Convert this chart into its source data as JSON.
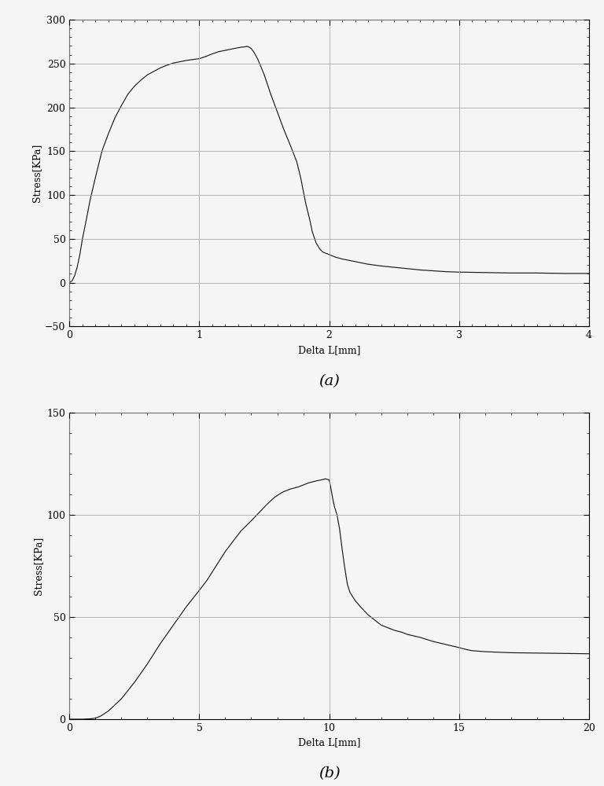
{
  "plot_a": {
    "title": "(a)",
    "xlabel": "Delta L[mm]",
    "ylabel": "Stress[KPa]",
    "xlim": [
      0,
      4
    ],
    "ylim": [
      -50,
      300
    ],
    "xticks": [
      0,
      1,
      2,
      3,
      4
    ],
    "yticks": [
      -50,
      0,
      50,
      100,
      150,
      200,
      250,
      300
    ],
    "x_minor_interval": 0.1,
    "y_minor_interval": 10,
    "curve": [
      [
        0.0,
        0.0
      ],
      [
        0.02,
        2.0
      ],
      [
        0.04,
        8.0
      ],
      [
        0.06,
        18.0
      ],
      [
        0.08,
        32.0
      ],
      [
        0.1,
        50.0
      ],
      [
        0.13,
        72.0
      ],
      [
        0.16,
        95.0
      ],
      [
        0.2,
        120.0
      ],
      [
        0.25,
        150.0
      ],
      [
        0.3,
        170.0
      ],
      [
        0.35,
        188.0
      ],
      [
        0.4,
        202.0
      ],
      [
        0.45,
        215.0
      ],
      [
        0.5,
        224.0
      ],
      [
        0.55,
        231.0
      ],
      [
        0.6,
        237.0
      ],
      [
        0.65,
        241.0
      ],
      [
        0.7,
        245.0
      ],
      [
        0.75,
        248.0
      ],
      [
        0.8,
        250.5
      ],
      [
        0.85,
        252.0
      ],
      [
        0.9,
        253.5
      ],
      [
        0.95,
        254.5
      ],
      [
        1.0,
        255.5
      ],
      [
        1.05,
        258.0
      ],
      [
        1.1,
        261.0
      ],
      [
        1.15,
        263.5
      ],
      [
        1.2,
        265.0
      ],
      [
        1.25,
        266.5
      ],
      [
        1.3,
        268.0
      ],
      [
        1.32,
        268.5
      ],
      [
        1.35,
        269.0
      ],
      [
        1.37,
        269.5
      ],
      [
        1.38,
        269.0
      ],
      [
        1.4,
        267.0
      ],
      [
        1.42,
        263.0
      ],
      [
        1.45,
        255.0
      ],
      [
        1.5,
        237.0
      ],
      [
        1.55,
        215.0
      ],
      [
        1.6,
        195.0
      ],
      [
        1.65,
        175.0
      ],
      [
        1.7,
        157.0
      ],
      [
        1.75,
        138.0
      ],
      [
        1.78,
        120.0
      ],
      [
        1.8,
        105.0
      ],
      [
        1.82,
        90.0
      ],
      [
        1.85,
        72.0
      ],
      [
        1.87,
        58.0
      ],
      [
        1.9,
        45.0
      ],
      [
        1.93,
        38.0
      ],
      [
        1.95,
        35.0
      ],
      [
        2.0,
        32.0
      ],
      [
        2.05,
        29.0
      ],
      [
        2.1,
        27.0
      ],
      [
        2.2,
        24.0
      ],
      [
        2.3,
        21.0
      ],
      [
        2.4,
        19.0
      ],
      [
        2.5,
        17.5
      ],
      [
        2.6,
        16.0
      ],
      [
        2.7,
        14.5
      ],
      [
        2.8,
        13.5
      ],
      [
        2.9,
        12.5
      ],
      [
        3.0,
        12.0
      ],
      [
        3.2,
        11.5
      ],
      [
        3.4,
        11.0
      ],
      [
        3.6,
        11.0
      ],
      [
        3.8,
        10.5
      ],
      [
        4.0,
        10.5
      ]
    ]
  },
  "plot_b": {
    "title": "(b)",
    "xlabel": "Delta L[mm]",
    "ylabel": "Stress[KPa]",
    "xlim": [
      0,
      20
    ],
    "ylim": [
      0,
      150
    ],
    "xticks": [
      0,
      5,
      10,
      15,
      20
    ],
    "yticks": [
      0,
      50,
      100,
      150
    ],
    "x_minor_interval": 1,
    "y_minor_interval": 10,
    "curve": [
      [
        0.0,
        0.0
      ],
      [
        0.5,
        0.0
      ],
      [
        0.8,
        0.2
      ],
      [
        1.0,
        0.5
      ],
      [
        1.2,
        1.5
      ],
      [
        1.5,
        4.0
      ],
      [
        2.0,
        10.0
      ],
      [
        2.5,
        18.0
      ],
      [
        3.0,
        27.0
      ],
      [
        3.5,
        37.0
      ],
      [
        4.0,
        46.0
      ],
      [
        4.5,
        55.0
      ],
      [
        5.0,
        63.0
      ],
      [
        5.3,
        68.0
      ],
      [
        5.5,
        72.0
      ],
      [
        5.8,
        78.0
      ],
      [
        6.0,
        82.0
      ],
      [
        6.3,
        87.0
      ],
      [
        6.6,
        92.0
      ],
      [
        7.0,
        97.0
      ],
      [
        7.3,
        101.0
      ],
      [
        7.6,
        105.0
      ],
      [
        7.9,
        108.5
      ],
      [
        8.2,
        111.0
      ],
      [
        8.5,
        112.5
      ],
      [
        8.8,
        113.5
      ],
      [
        9.0,
        114.5
      ],
      [
        9.2,
        115.5
      ],
      [
        9.5,
        116.5
      ],
      [
        9.7,
        117.0
      ],
      [
        9.85,
        117.5
      ],
      [
        10.0,
        117.0
      ],
      [
        10.05,
        114.0
      ],
      [
        10.1,
        110.5
      ],
      [
        10.15,
        107.0
      ],
      [
        10.2,
        104.0
      ],
      [
        10.3,
        100.0
      ],
      [
        10.4,
        93.0
      ],
      [
        10.5,
        83.0
      ],
      [
        10.6,
        74.0
      ],
      [
        10.7,
        66.0
      ],
      [
        10.8,
        62.0
      ],
      [
        11.0,
        58.0
      ],
      [
        11.2,
        55.0
      ],
      [
        11.5,
        51.0
      ],
      [
        11.8,
        48.0
      ],
      [
        12.0,
        46.0
      ],
      [
        12.3,
        44.5
      ],
      [
        12.5,
        43.5
      ],
      [
        12.8,
        42.5
      ],
      [
        13.0,
        41.5
      ],
      [
        13.5,
        40.0
      ],
      [
        14.0,
        38.0
      ],
      [
        14.5,
        36.5
      ],
      [
        15.0,
        35.0
      ],
      [
        15.3,
        34.0
      ],
      [
        15.5,
        33.5
      ],
      [
        16.0,
        33.0
      ],
      [
        17.0,
        32.5
      ],
      [
        20.0,
        32.0
      ]
    ]
  },
  "line_color": "#1a1a1a",
  "grid_color_major": "#a0a0a0",
  "grid_color_minor": "#d0d0d0",
  "background_color": "#f5f5f5",
  "font_family": "serif"
}
